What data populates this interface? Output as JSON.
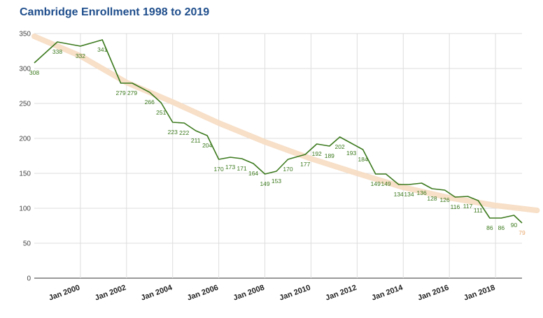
{
  "chart_data": {
    "type": "line",
    "title": "Cambridge Enrollment 1998 to 2019",
    "xlabel": "",
    "ylabel": "",
    "ylim": [
      0,
      350
    ],
    "yticks": [
      0,
      50,
      100,
      150,
      200,
      250,
      300,
      350
    ],
    "x_ticks": [
      {
        "label": "Jan 2000",
        "t": 2000
      },
      {
        "label": "Jan 2002",
        "t": 2002
      },
      {
        "label": "Jan 2004",
        "t": 2004
      },
      {
        "label": "Jan 2006",
        "t": 2006
      },
      {
        "label": "Jan 2008",
        "t": 2008
      },
      {
        "label": "Jan 2010",
        "t": 2010
      },
      {
        "label": "Jan 2012",
        "t": 2012
      },
      {
        "label": "Jan 2014",
        "t": 2014
      },
      {
        "label": "Jan 2016",
        "t": 2016
      },
      {
        "label": "Jan 2018",
        "t": 2018
      }
    ],
    "grid": true,
    "series": [
      {
        "color": "#3c7a1e",
        "x": [
          1998.0,
          1999.0,
          2000.0,
          2000.95,
          2001.75,
          2002.25,
          2003.0,
          2003.5,
          2004.0,
          2004.5,
          2005.0,
          2005.5,
          2006.0,
          2006.5,
          2007.0,
          2007.5,
          2008.0,
          2008.5,
          2009.0,
          2009.75,
          2010.25,
          2010.8,
          2011.25,
          2011.75,
          2012.25,
          2012.8,
          2013.25,
          2013.8,
          2014.25,
          2014.8,
          2015.25,
          2015.8,
          2016.25,
          2016.8,
          2017.25,
          2017.75,
          2018.25,
          2018.8,
          2019.15
        ],
        "values": [
          308,
          338,
          332,
          341,
          279,
          279,
          266,
          251,
          223,
          222,
          211,
          204,
          170,
          173,
          171,
          164,
          149,
          153,
          170,
          177,
          192,
          189,
          202,
          193,
          184,
          149,
          149,
          134,
          134,
          136,
          128,
          126,
          116,
          117,
          111,
          86,
          86,
          90,
          79
        ]
      }
    ],
    "trendline": {
      "color": "#f6dcc2",
      "x": [
        1998.0,
        2000.0,
        2002.0,
        2004.0,
        2006.0,
        2008.0,
        2010.0,
        2012.0,
        2014.0,
        2016.0,
        2018.0,
        2019.8
      ],
      "values": [
        346,
        318,
        280,
        252,
        222,
        195,
        171,
        150,
        130,
        115,
        104,
        97
      ]
    }
  }
}
